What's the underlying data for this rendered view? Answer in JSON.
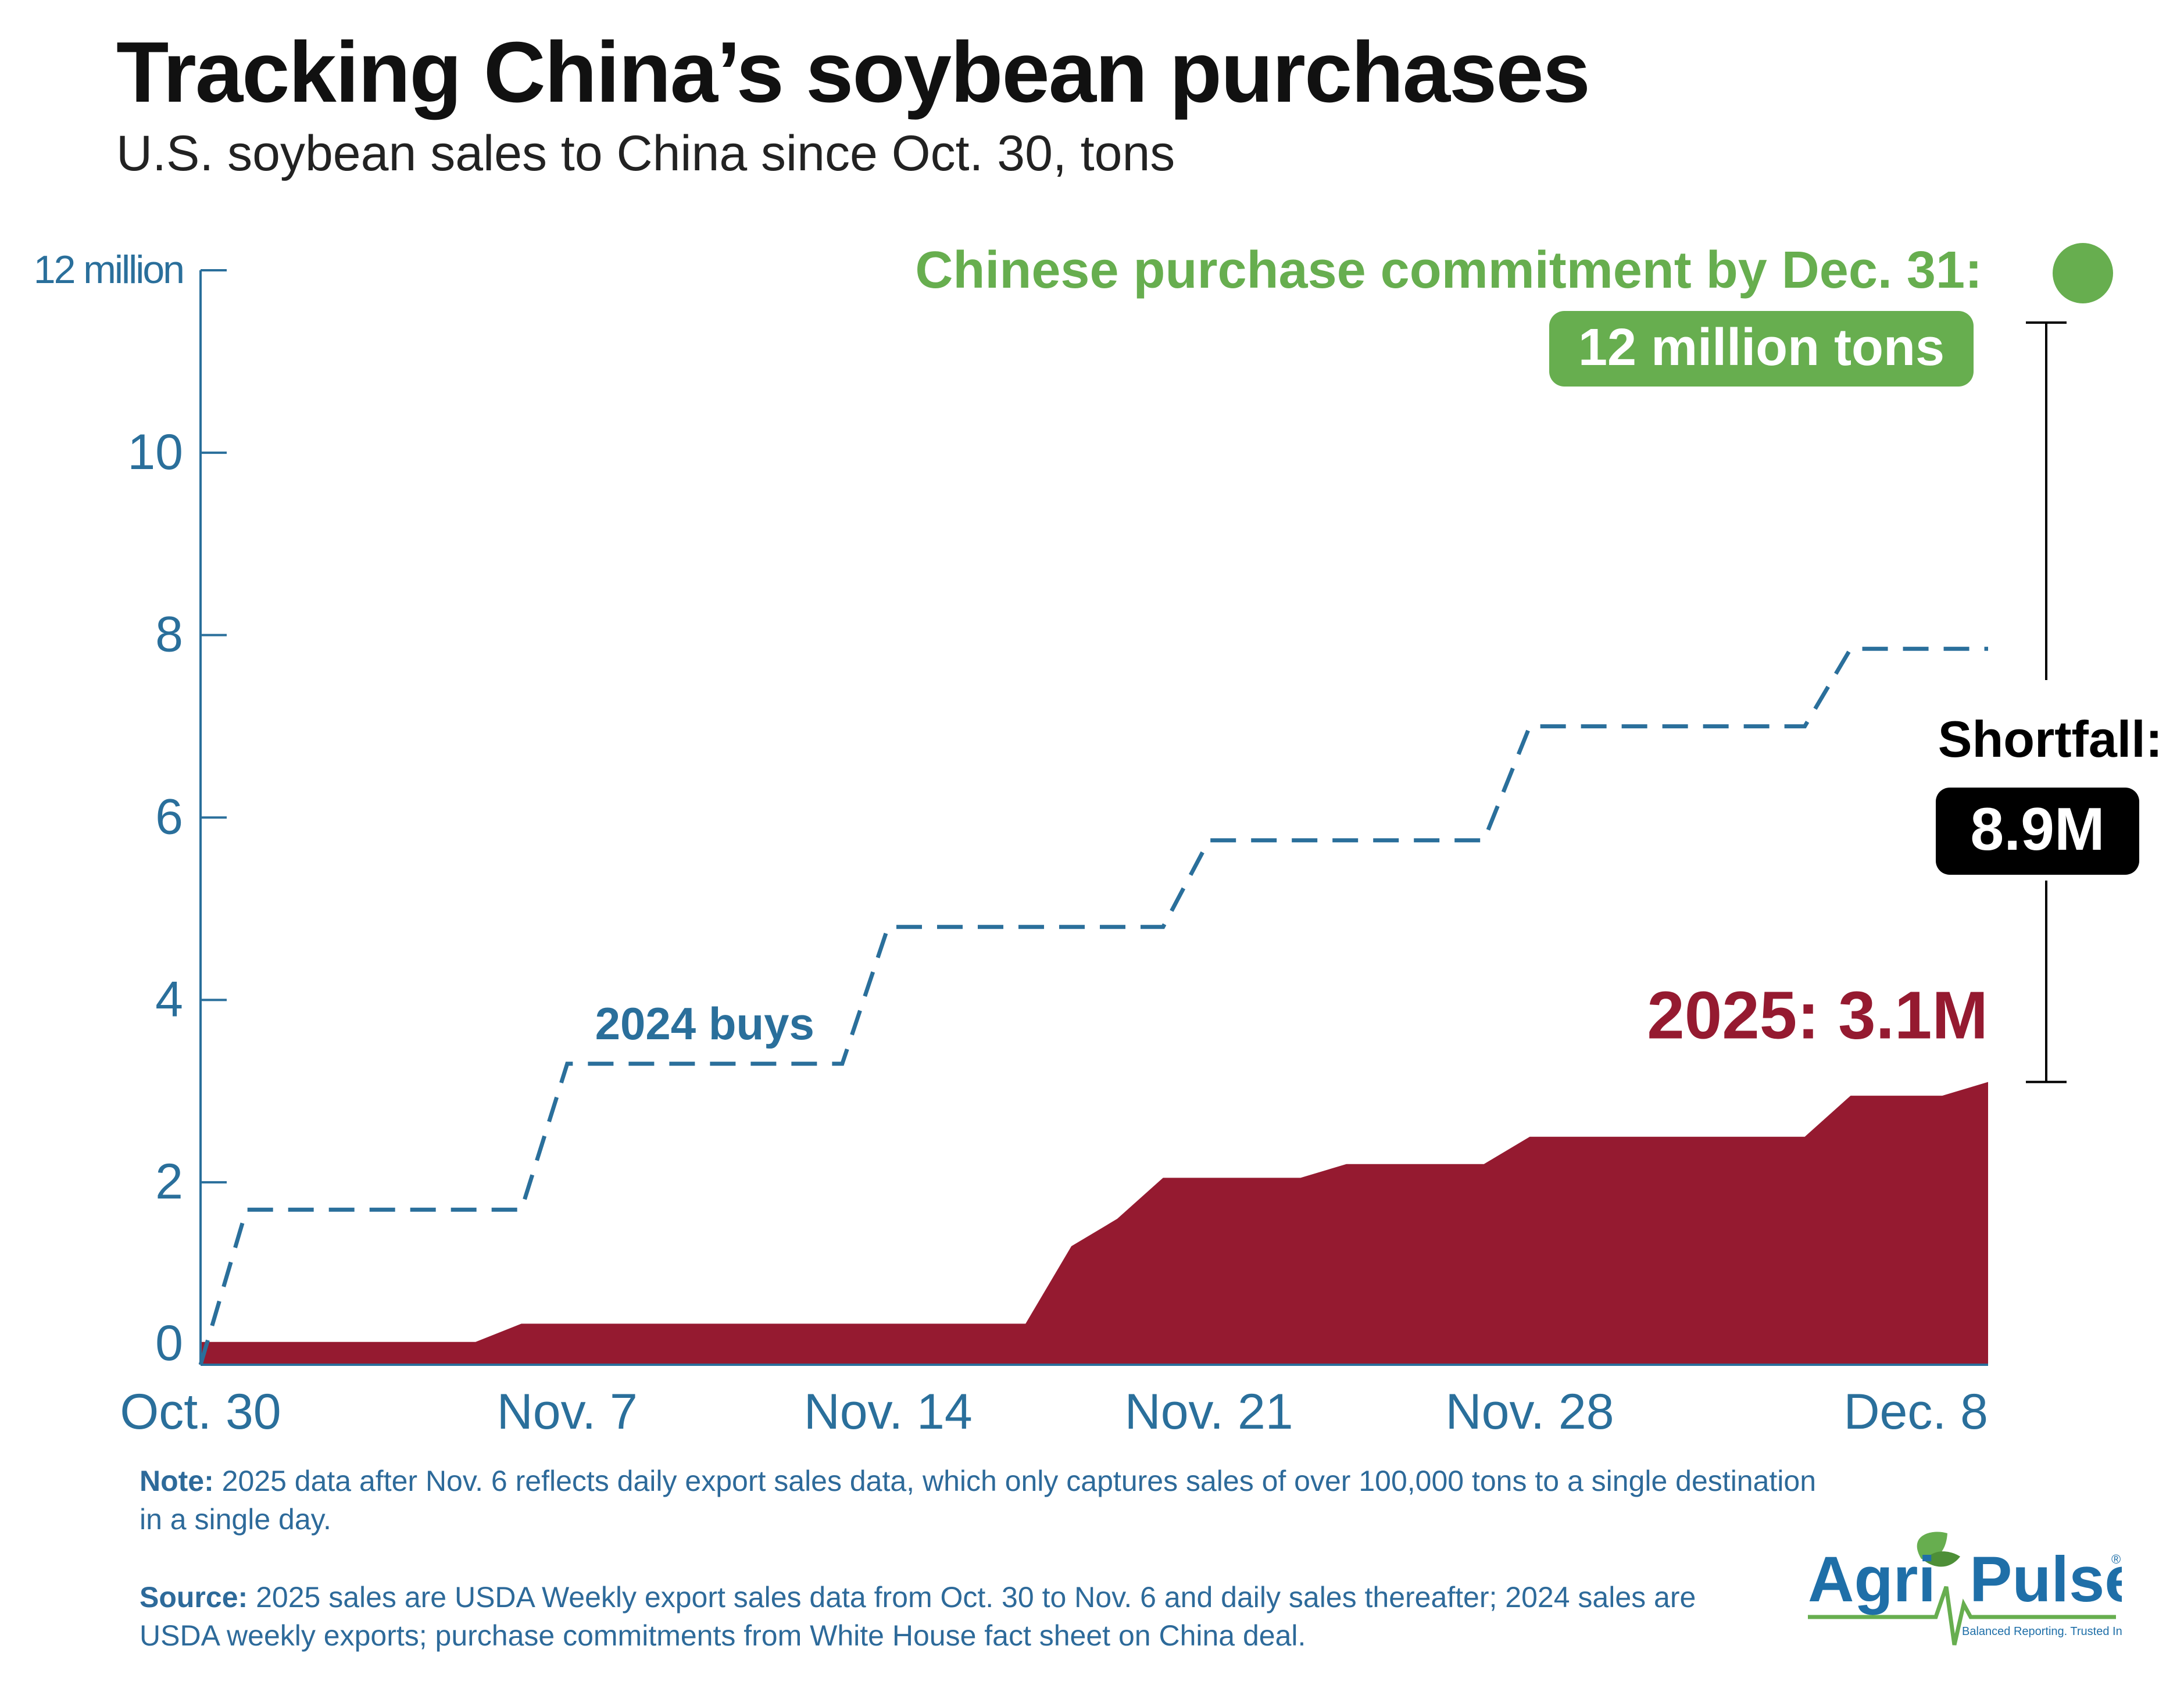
{
  "title": "Tracking China’s soybean purchases",
  "subtitle": "U.S. soybean sales to China since Oct. 30, tons",
  "colors": {
    "axis_blue": "#2a6f9b",
    "series_2025": "#951a30",
    "commitment_green": "#67ae4f",
    "shortfall_black": "#000000"
  },
  "chart_data": {
    "type": "area",
    "x_unit": "date",
    "ylim": [
      0,
      12
    ],
    "yticks": [
      {
        "value": 0,
        "label": "0"
      },
      {
        "value": 2,
        "label": "2"
      },
      {
        "value": 4,
        "label": "4"
      },
      {
        "value": 6,
        "label": "6"
      },
      {
        "value": 8,
        "label": "8"
      },
      {
        "value": 10,
        "label": "10"
      },
      {
        "value": 12,
        "label": "12 million"
      }
    ],
    "xlim": [
      "2025-10-30",
      "2025-12-08"
    ],
    "xticks": [
      {
        "date": "2025-10-30",
        "label": "Oct. 30"
      },
      {
        "date": "2025-11-07",
        "label": "Nov. 7"
      },
      {
        "date": "2025-11-14",
        "label": "Nov. 14"
      },
      {
        "date": "2025-11-21",
        "label": "Nov. 21"
      },
      {
        "date": "2025-11-28",
        "label": "Nov. 28"
      },
      {
        "date": "2025-12-08",
        "label": "Dec. 8"
      }
    ],
    "series": [
      {
        "name": "2025",
        "style": "area",
        "end_label": "2025: 3.1M",
        "points": [
          [
            "2025-10-30",
            0.25
          ],
          [
            "2025-11-05",
            0.25
          ],
          [
            "2025-11-06",
            0.45
          ],
          [
            "2025-11-17",
            0.45
          ],
          [
            "2025-11-18",
            1.3
          ],
          [
            "2025-11-19",
            1.6
          ],
          [
            "2025-11-20",
            2.05
          ],
          [
            "2025-11-23",
            2.05
          ],
          [
            "2025-11-24",
            2.2
          ],
          [
            "2025-11-27",
            2.2
          ],
          [
            "2025-11-28",
            2.5
          ],
          [
            "2025-12-04",
            2.5
          ],
          [
            "2025-12-05",
            2.95
          ],
          [
            "2025-12-07",
            2.95
          ],
          [
            "2025-12-08",
            3.1
          ]
        ]
      },
      {
        "name": "2024 buys",
        "style": "dashed-step",
        "label": "2024 buys",
        "points": [
          [
            "2025-10-30",
            0
          ],
          [
            "2025-10-31",
            1.7
          ],
          [
            "2025-11-06",
            1.7
          ],
          [
            "2025-11-07",
            3.3
          ],
          [
            "2025-11-13",
            3.3
          ],
          [
            "2025-11-14",
            4.8
          ],
          [
            "2025-11-20",
            4.8
          ],
          [
            "2025-11-21",
            5.75
          ],
          [
            "2025-11-27",
            5.75
          ],
          [
            "2025-11-28",
            7.0
          ],
          [
            "2025-12-04",
            7.0
          ],
          [
            "2025-12-05",
            7.85
          ],
          [
            "2025-12-08",
            7.85
          ]
        ]
      }
    ],
    "commitment": {
      "value": 12,
      "label": "Chinese purchase commitment by Dec. 31:",
      "badge": "12 million tons"
    },
    "shortfall": {
      "label": "Shortfall:",
      "value_label": "8.9M"
    }
  },
  "notes": {
    "note_heading": "Note:",
    "note_line1": "2025 data after Nov. 6 reflects daily export sales data, which only captures sales of over 100,000 tons to a single destination",
    "note_line2": "in a single day.",
    "source_heading": "Source:",
    "source_line1": "2025 sales are USDA Weekly export sales data from Oct. 30 to Nov. 6 and daily sales thereafter; 2024 sales are",
    "source_line2": "USDA weekly exports; purchase commitments from White House fact sheet on China deal."
  },
  "logo": {
    "brand_left": "Agri",
    "brand_right": "Pulse",
    "tagline": "Balanced Reporting. Trusted Insights.",
    "registered": "®"
  }
}
